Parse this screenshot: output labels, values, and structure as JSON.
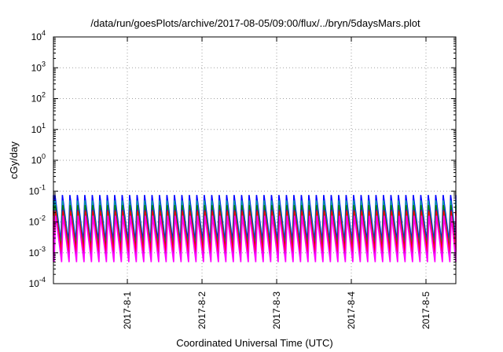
{
  "chart_data": {
    "type": "line",
    "title": "/data/run/goesPlots/archive/2017-08-05/09:00/flux/../bryn/5daysMars.plot",
    "xlabel": "Coordinated Universal Time (UTC)",
    "ylabel": "cGy/day",
    "yscale": "log",
    "ylim": [
      0.0001,
      10000
    ],
    "xlim": [
      -0.99,
      4.4
    ],
    "y_ticks": [
      {
        "exp": "-4",
        "value": 0.0001
      },
      {
        "exp": "-3",
        "value": 0.001
      },
      {
        "exp": "-2",
        "value": 0.01
      },
      {
        "exp": "-1",
        "value": 0.1
      },
      {
        "exp": "0",
        "value": 1
      },
      {
        "exp": "1",
        "value": 10
      },
      {
        "exp": "2",
        "value": 100
      },
      {
        "exp": "3",
        "value": 1000
      },
      {
        "exp": "4",
        "value": 10000
      }
    ],
    "y_tick_base": "10",
    "x_ticks": [
      {
        "label": "2017-8-1",
        "value": 0
      },
      {
        "label": "2017-8-2",
        "value": 1
      },
      {
        "label": "2017-8-3",
        "value": 2
      },
      {
        "label": "2017-8-4",
        "value": 3
      },
      {
        "label": "2017-8-5",
        "value": 4
      }
    ],
    "grid": true,
    "oscillation": {
      "period_days": 0.1,
      "peak_day_offset": 0.03
    },
    "series": [
      {
        "color": "#0000ff",
        "peak": 0.075,
        "trough": 0.0022
      },
      {
        "color": "#00a0a0",
        "peak": 0.05,
        "trough": 0.0015
      },
      {
        "color": "#008000",
        "peak": 0.035,
        "trough": 0.0012
      },
      {
        "color": "#800080",
        "peak": 0.025,
        "trough": 0.0009
      },
      {
        "color": "#ff0000",
        "peak": 0.022,
        "trough": 0.0011
      },
      {
        "color": "#ff00ff",
        "peak": 0.016,
        "trough": 0.0005
      }
    ]
  }
}
